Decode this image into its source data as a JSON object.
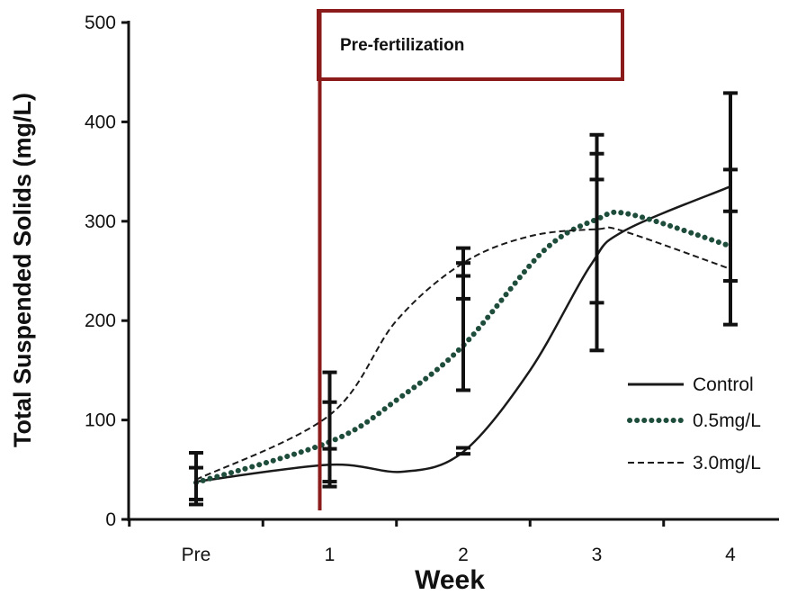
{
  "chart_data": {
    "type": "line",
    "xlabel": "Week",
    "ylabel": "Total Suspended Solids (mg/L)",
    "ylim": [
      0,
      500
    ],
    "yticks": [
      0,
      100,
      200,
      300,
      400,
      500
    ],
    "categories": [
      "Pre",
      "1",
      "2",
      "3",
      "4"
    ],
    "legend_position": "bottom-right",
    "annotation": {
      "text": "Pre-fertilization",
      "marker_at_category": "1",
      "color": "#8b1a1a"
    },
    "series": [
      {
        "name": "Control",
        "style": "solid",
        "color": "#1a1a1a",
        "x": [
          0.0,
          1.0,
          1.55,
          2.0,
          2.5,
          2.95,
          3.2,
          4.0
        ],
        "values": [
          38,
          55,
          48,
          68,
          150,
          255,
          290,
          335
        ]
      },
      {
        "name": "0.5mg/L",
        "style": "dotted",
        "color": "#1e4d3c",
        "x": [
          0.0,
          1.0,
          1.5,
          2.0,
          2.6,
          3.0,
          3.25,
          4.0
        ],
        "values": [
          37,
          78,
          120,
          175,
          270,
          302,
          307,
          275
        ]
      },
      {
        "name": "3.0mg/L",
        "style": "dashed",
        "color": "#1a1a1a",
        "x": [
          0.0,
          1.0,
          1.5,
          2.0,
          2.5,
          3.0,
          3.2,
          4.0
        ],
        "values": [
          40,
          105,
          200,
          258,
          285,
          292,
          290,
          252
        ]
      }
    ],
    "error_bars": [
      {
        "x": 0.0,
        "low": 15,
        "high": 67,
        "ticks": [
          20,
          52
        ]
      },
      {
        "x": 1.0,
        "low": 33,
        "high": 148,
        "ticks": [
          38,
          71,
          118
        ]
      },
      {
        "x": 2.0,
        "low": 130,
        "high": 273,
        "ticks": [
          66,
          72,
          222,
          245,
          258
        ]
      },
      {
        "x": 3.0,
        "low": 170,
        "high": 387,
        "ticks": [
          218,
          342,
          368
        ]
      },
      {
        "x": 4.0,
        "low": 196,
        "high": 429,
        "ticks": [
          240,
          310,
          352
        ]
      }
    ]
  }
}
